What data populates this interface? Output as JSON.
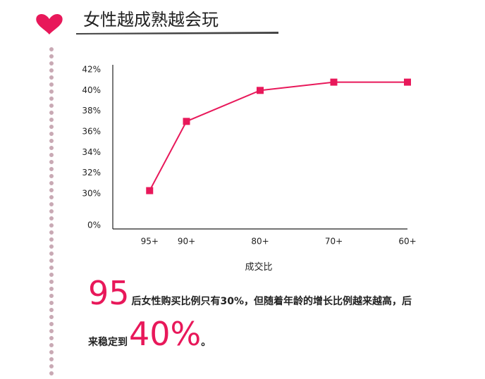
{
  "header": {
    "title": "女性越成熟越会玩"
  },
  "chart_data": {
    "type": "line",
    "x": [
      95,
      90,
      80,
      70,
      60
    ],
    "xlim": [
      100,
      60
    ],
    "xticks": [
      {
        "value": 95,
        "label": "95+"
      },
      {
        "value": 90,
        "label": "90+"
      },
      {
        "value": 80,
        "label": "80+"
      },
      {
        "value": 70,
        "label": "70+"
      },
      {
        "value": 60,
        "label": "60+"
      }
    ],
    "xlabel": "成交比",
    "series": [
      {
        "color": "#e8185a",
        "values": [
          30.3,
          37.0,
          40.0,
          40.8,
          40.8
        ]
      }
    ],
    "ylim": [
      0,
      42
    ],
    "y_break": [
      0,
      30
    ],
    "yticks": [
      {
        "value": 0,
        "label": "0%"
      },
      {
        "value": 30,
        "label": "30%"
      },
      {
        "value": 32,
        "label": "32%"
      },
      {
        "value": 34,
        "label": "34%"
      },
      {
        "value": 36,
        "label": "36%"
      },
      {
        "value": 38,
        "label": "38%"
      },
      {
        "value": 40,
        "label": "40%"
      },
      {
        "value": 42,
        "label": "42%"
      }
    ]
  },
  "caption": {
    "line1": {
      "big": "95",
      "text": "后女性购买比例只有30%，但随着年龄的增长比例越来越高，后"
    },
    "line2": {
      "text": "来稳定到",
      "big": "40%",
      "end": "。"
    }
  }
}
